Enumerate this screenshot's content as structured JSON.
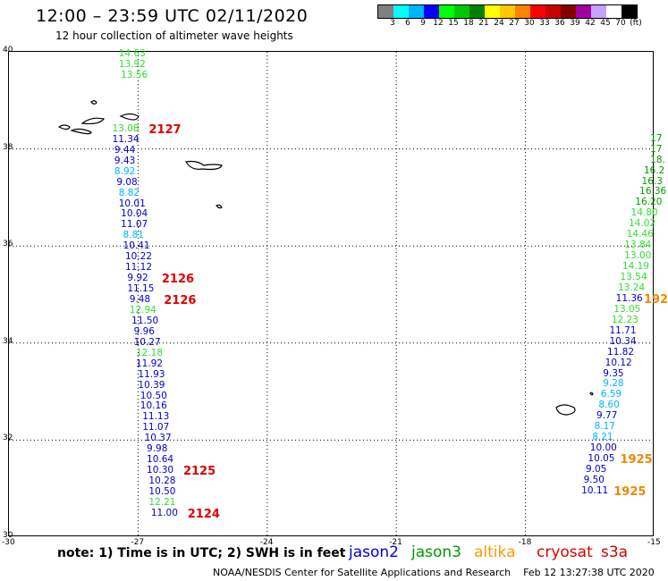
{
  "header": {
    "title": "12:00 – 23:59 UTC 02/11/2020",
    "subtitle": "12 hour collection of altimeter wave heights"
  },
  "colorbar": {
    "colors": [
      "#808080",
      "#00ffff",
      "#00b4ff",
      "#0000ff",
      "#00ff00",
      "#00c800",
      "#008200",
      "#ffff00",
      "#ffc800",
      "#ff8200",
      "#ff0000",
      "#c80000",
      "#820000",
      "#a000a0",
      "#c8a0ff",
      "#ffffff",
      "#000000"
    ],
    "labels": [
      "3",
      "6",
      "9",
      "12",
      "15",
      "18",
      "21",
      "24",
      "27",
      "30",
      "33",
      "36",
      "39",
      "42",
      "45",
      "70",
      "(ft)"
    ]
  },
  "map": {
    "lon_ticks": [
      "-30",
      "-27",
      "-24",
      "-21",
      "-18",
      "-15"
    ],
    "lat_ticks": [
      "40",
      "38",
      "36",
      "34",
      "32",
      "30"
    ],
    "lon_min": -30,
    "lon_max": -15,
    "lat_min": 30,
    "lat_max": 40
  },
  "tracks": {
    "left": [
      {
        "v": "14.63",
        "lat": 39.94,
        "lon": -27.45,
        "c": "#33dd33"
      },
      {
        "v": "13.92",
        "lat": 39.72,
        "lon": -27.45,
        "c": "#33dd33"
      },
      {
        "v": "13.56",
        "lat": 39.5,
        "lon": -27.4,
        "c": "#33dd33"
      },
      {
        "v": "13.08",
        "lat": 38.4,
        "lon": -27.6,
        "c": "#33dd33"
      },
      {
        "v": "11.34",
        "lat": 38.18,
        "lon": -27.6,
        "c": "#0000cc"
      },
      {
        "v": "9.44",
        "lat": 37.96,
        "lon": -27.55,
        "c": "#0000cc"
      },
      {
        "v": "9.43",
        "lat": 37.74,
        "lon": -27.55,
        "c": "#0000cc"
      },
      {
        "v": "8.92",
        "lat": 37.52,
        "lon": -27.55,
        "c": "#00b4ff"
      },
      {
        "v": "9.08",
        "lat": 37.3,
        "lon": -27.5,
        "c": "#0000cc"
      },
      {
        "v": "8.82",
        "lat": 37.08,
        "lon": -27.45,
        "c": "#00b4ff"
      },
      {
        "v": "10.01",
        "lat": 36.86,
        "lon": -27.45,
        "c": "#0000cc"
      },
      {
        "v": "10.04",
        "lat": 36.64,
        "lon": -27.4,
        "c": "#0000cc"
      },
      {
        "v": "11.07",
        "lat": 36.42,
        "lon": -27.4,
        "c": "#0000cc"
      },
      {
        "v": "8.81",
        "lat": 36.2,
        "lon": -27.35,
        "c": "#00b4ff"
      },
      {
        "v": "10.41",
        "lat": 35.98,
        "lon": -27.35,
        "c": "#0000cc"
      },
      {
        "v": "10.22",
        "lat": 35.76,
        "lon": -27.3,
        "c": "#0000cc"
      },
      {
        "v": "11.12",
        "lat": 35.54,
        "lon": -27.3,
        "c": "#0000cc"
      },
      {
        "v": "9.92",
        "lat": 35.32,
        "lon": -27.25,
        "c": "#0000cc"
      },
      {
        "v": "11.15",
        "lat": 35.1,
        "lon": -27.25,
        "c": "#0000cc"
      },
      {
        "v": "9.48",
        "lat": 34.88,
        "lon": -27.2,
        "c": "#0000cc"
      },
      {
        "v": "12.94",
        "lat": 34.66,
        "lon": -27.2,
        "c": "#33dd33"
      },
      {
        "v": "11.50",
        "lat": 34.44,
        "lon": -27.15,
        "c": "#0000cc"
      },
      {
        "v": "9.96",
        "lat": 34.22,
        "lon": -27.1,
        "c": "#0000cc"
      },
      {
        "v": "10.27",
        "lat": 34.0,
        "lon": -27.1,
        "c": "#0000cc"
      },
      {
        "v": "12.18",
        "lat": 33.78,
        "lon": -27.05,
        "c": "#33dd33"
      },
      {
        "v": "11.92",
        "lat": 33.56,
        "lon": -27.05,
        "c": "#0000cc"
      },
      {
        "v": "11.93",
        "lat": 33.34,
        "lon": -27.0,
        "c": "#0000cc"
      },
      {
        "v": "10.39",
        "lat": 33.12,
        "lon": -27.0,
        "c": "#0000cc"
      },
      {
        "v": "10.50",
        "lat": 32.9,
        "lon": -26.95,
        "c": "#0000cc"
      },
      {
        "v": "10.16",
        "lat": 32.68,
        "lon": -26.95,
        "c": "#0000cc"
      },
      {
        "v": "11.13",
        "lat": 32.46,
        "lon": -26.9,
        "c": "#0000cc"
      },
      {
        "v": "11.07",
        "lat": 32.24,
        "lon": -26.9,
        "c": "#0000cc"
      },
      {
        "v": "10.37",
        "lat": 32.02,
        "lon": -26.85,
        "c": "#0000cc"
      },
      {
        "v": "9.98",
        "lat": 31.8,
        "lon": -26.8,
        "c": "#0000cc"
      },
      {
        "v": "10.64",
        "lat": 31.58,
        "lon": -26.8,
        "c": "#0000cc"
      },
      {
        "v": "10.30",
        "lat": 31.36,
        "lon": -26.8,
        "c": "#0000cc"
      },
      {
        "v": "10.28",
        "lat": 31.14,
        "lon": -26.75,
        "c": "#0000cc"
      },
      {
        "v": "10.50",
        "lat": 30.92,
        "lon": -26.75,
        "c": "#0000cc"
      },
      {
        "v": "12.21",
        "lat": 30.7,
        "lon": -26.75,
        "c": "#33dd33"
      },
      {
        "v": "11.00",
        "lat": 30.48,
        "lon": -26.7,
        "c": "#0000cc"
      }
    ],
    "right": [
      {
        "v": "17",
        "lat": 38.2,
        "lon": -15.1,
        "c": "#009900"
      },
      {
        "v": "17",
        "lat": 37.98,
        "lon": -15.1,
        "c": "#009900"
      },
      {
        "v": "18.",
        "lat": 37.76,
        "lon": -15.1,
        "c": "#009900"
      },
      {
        "v": "16.2",
        "lat": 37.54,
        "lon": -15.25,
        "c": "#009900"
      },
      {
        "v": "16.3",
        "lat": 37.32,
        "lon": -15.3,
        "c": "#009900"
      },
      {
        "v": "16.36",
        "lat": 37.1,
        "lon": -15.35,
        "c": "#009900"
      },
      {
        "v": "16.20",
        "lat": 36.88,
        "lon": -15.45,
        "c": "#009900"
      },
      {
        "v": "14.80",
        "lat": 36.66,
        "lon": -15.55,
        "c": "#33dd33"
      },
      {
        "v": "14.02",
        "lat": 36.44,
        "lon": -15.6,
        "c": "#33dd33"
      },
      {
        "v": "14.46",
        "lat": 36.22,
        "lon": -15.65,
        "c": "#33dd33"
      },
      {
        "v": "13.84",
        "lat": 36.0,
        "lon": -15.7,
        "c": "#33dd33"
      },
      {
        "v": "13.00",
        "lat": 35.78,
        "lon": -15.7,
        "c": "#33dd33"
      },
      {
        "v": "14.19",
        "lat": 35.56,
        "lon": -15.75,
        "c": "#33dd33"
      },
      {
        "v": "13.54",
        "lat": 35.34,
        "lon": -15.8,
        "c": "#33dd33"
      },
      {
        "v": "13.24",
        "lat": 35.12,
        "lon": -15.85,
        "c": "#33dd33"
      },
      {
        "v": "11.36",
        "lat": 34.9,
        "lon": -15.9,
        "c": "#0000cc"
      },
      {
        "v": "13.05",
        "lat": 34.68,
        "lon": -15.95,
        "c": "#33dd33"
      },
      {
        "v": "12.23",
        "lat": 34.46,
        "lon": -16.0,
        "c": "#33dd33"
      },
      {
        "v": "11.71",
        "lat": 34.24,
        "lon": -16.05,
        "c": "#0000cc"
      },
      {
        "v": "10.34",
        "lat": 34.02,
        "lon": -16.05,
        "c": "#0000cc"
      },
      {
        "v": "11.82",
        "lat": 33.8,
        "lon": -16.1,
        "c": "#0000cc"
      },
      {
        "v": "10.12",
        "lat": 33.58,
        "lon": -16.15,
        "c": "#0000cc"
      },
      {
        "v": "9.35",
        "lat": 33.36,
        "lon": -16.2,
        "c": "#0000cc"
      },
      {
        "v": "9.28",
        "lat": 33.14,
        "lon": -16.2,
        "c": "#00b4ff"
      },
      {
        "v": "6.59",
        "lat": 32.92,
        "lon": -16.25,
        "c": "#00b4ff"
      },
      {
        "v": "8.60",
        "lat": 32.7,
        "lon": -16.3,
        "c": "#00b4ff"
      },
      {
        "v": "9.77",
        "lat": 32.48,
        "lon": -16.35,
        "c": "#0000cc"
      },
      {
        "v": "8.17",
        "lat": 32.26,
        "lon": -16.4,
        "c": "#00b4ff"
      },
      {
        "v": "8.21",
        "lat": 32.04,
        "lon": -16.45,
        "c": "#00b4ff"
      },
      {
        "v": "10.00",
        "lat": 31.82,
        "lon": -16.5,
        "c": "#0000cc"
      },
      {
        "v": "10.05",
        "lat": 31.6,
        "lon": -16.55,
        "c": "#0000cc"
      },
      {
        "v": "9.05",
        "lat": 31.38,
        "lon": -16.6,
        "c": "#0000cc"
      },
      {
        "v": "9.50",
        "lat": 31.16,
        "lon": -16.65,
        "c": "#0000cc"
      },
      {
        "v": "10.11",
        "lat": 30.94,
        "lon": -16.7,
        "c": "#0000cc"
      }
    ]
  },
  "time_labels": [
    {
      "t": "2127",
      "lat": 38.4,
      "lon": -26.75,
      "c": "#dd0000"
    },
    {
      "t": "2126",
      "lat": 35.32,
      "lon": -26.45,
      "c": "#dd0000"
    },
    {
      "t": "2126",
      "lat": 34.88,
      "lon": -26.4,
      "c": "#dd0000"
    },
    {
      "t": "2125",
      "lat": 31.36,
      "lon": -25.95,
      "c": "#dd0000"
    },
    {
      "t": "2124",
      "lat": 30.48,
      "lon": -25.85,
      "c": "#dd0000"
    },
    {
      "t": "192",
      "lat": 34.9,
      "lon": -15.25,
      "c": "#ee8800"
    },
    {
      "t": "1925",
      "lat": 31.6,
      "lon": -15.8,
      "c": "#ee8800"
    },
    {
      "t": "1925",
      "lat": 30.94,
      "lon": -15.95,
      "c": "#ee8800"
    }
  ],
  "note": "note:  1) Time is in UTC; 2) SWH is in feet",
  "satellites": [
    {
      "name": "jason2",
      "color": "#0000dd"
    },
    {
      "name": "jason3",
      "color": "#009900"
    },
    {
      "name": "altika",
      "color": "#ff9900"
    },
    {
      "name": "cryosat",
      "color": "#dd0000"
    },
    {
      "name": "s3a",
      "color": "#cc0000"
    }
  ],
  "footer": {
    "credit": "NOAA/NESDIS Center for Satellite Applications and Research",
    "timestamp": "Feb 12 13:27:38 UTC 2020"
  }
}
